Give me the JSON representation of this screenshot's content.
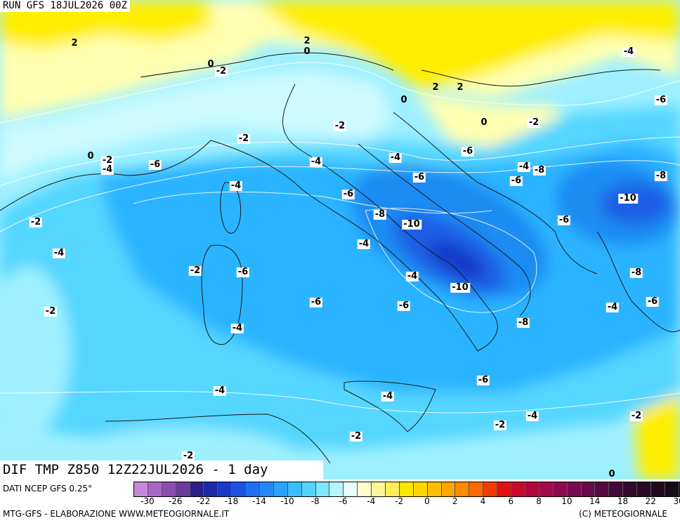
{
  "header": {
    "run_title": "RUN GFS 18JUL2026 00Z",
    "field_title": "DIF TMP Z850 12Z22JUL2026 - 1 day"
  },
  "map": {
    "region": "Central Mediterranean / Italy",
    "colors": {
      "warm_0_2": "#ffffb0",
      "warm_2_4": "#ffee00",
      "cold_0": "#cdfbff",
      "cold_2": "#9ef0ff",
      "cold_4": "#55d6ff",
      "cold_6": "#2ab4ff",
      "cold_8": "#1f8cf3",
      "cold_10": "#1e5fe6",
      "cold_12": "#1738c8",
      "coast": "#1a1a1a",
      "contour": "#ffffff"
    },
    "contour_labels": [
      {
        "text": "2"
      },
      {
        "text": "0"
      },
      {
        "text": "-2"
      },
      {
        "text": "2"
      },
      {
        "text": "0"
      },
      {
        "text": "-4"
      },
      {
        "text": "2"
      },
      {
        "text": "2"
      },
      {
        "text": "0"
      },
      {
        "text": "-6"
      },
      {
        "text": "0"
      },
      {
        "text": "-2"
      },
      {
        "text": "-2"
      },
      {
        "text": "-2"
      },
      {
        "text": "0"
      },
      {
        "text": "-2"
      },
      {
        "text": "-4"
      },
      {
        "text": "-6"
      },
      {
        "text": "-4"
      },
      {
        "text": "-4"
      },
      {
        "text": "-6"
      },
      {
        "text": "-4"
      },
      {
        "text": "-8"
      },
      {
        "text": "-6"
      },
      {
        "text": "-8"
      },
      {
        "text": "-4"
      },
      {
        "text": "-6"
      },
      {
        "text": "-6"
      },
      {
        "text": "-10"
      },
      {
        "text": "-2"
      },
      {
        "text": "-8"
      },
      {
        "text": "-10"
      },
      {
        "text": "-6"
      },
      {
        "text": "-4"
      },
      {
        "text": "-4"
      },
      {
        "text": "-2"
      },
      {
        "text": "-6"
      },
      {
        "text": "-4"
      },
      {
        "text": "-10"
      },
      {
        "text": "-8"
      },
      {
        "text": "-6"
      },
      {
        "text": "-6"
      },
      {
        "text": "-2"
      },
      {
        "text": "-4"
      },
      {
        "text": "-6"
      },
      {
        "text": "-4"
      },
      {
        "text": "-8"
      },
      {
        "text": "-4"
      },
      {
        "text": "-6"
      },
      {
        "text": "-4"
      },
      {
        "text": "-4"
      },
      {
        "text": "-2"
      },
      {
        "text": "-2"
      },
      {
        "text": "-2"
      },
      {
        "text": "-2"
      },
      {
        "text": "0"
      }
    ]
  },
  "legend": {
    "data_source": "DATI NCEP GFS 0.25°",
    "scale_colors": [
      "#c58ad6",
      "#a866c4",
      "#8b4fb1",
      "#6c3a9e",
      "#2b2188",
      "#1a2aa8",
      "#1a3bc8",
      "#1c54e0",
      "#1f6fee",
      "#2489f6",
      "#2aa3ff",
      "#3bbcff",
      "#55d3ff",
      "#7ee6ff",
      "#b6f5ff",
      "#e8fdff",
      "#fffdd0",
      "#fff59a",
      "#ffee55",
      "#ffe600",
      "#ffd500",
      "#ffbf00",
      "#ffa500",
      "#ff8a00",
      "#ff6a00",
      "#f23b00",
      "#e01212",
      "#c80a2a",
      "#b0083c",
      "#a00a48",
      "#8e0a50",
      "#7c0a50",
      "#6a0a4a",
      "#560a40",
      "#440a36",
      "#340a2c",
      "#2a0a24",
      "#220a1e",
      "#1a0a18"
    ],
    "scale_labels": [
      "-30",
      "-26",
      "-22",
      "-18",
      "-14",
      "-10",
      "-8",
      "-6",
      "-4",
      "-2",
      "0",
      "2",
      "4",
      "6",
      "8",
      "10",
      "14",
      "18",
      "22",
      "30"
    ]
  },
  "footer": {
    "left": "MTG-GFS - ELABORAZIONE WWW.METEOGIORNALE.IT",
    "right": "(C) METEOGIORNALE"
  }
}
